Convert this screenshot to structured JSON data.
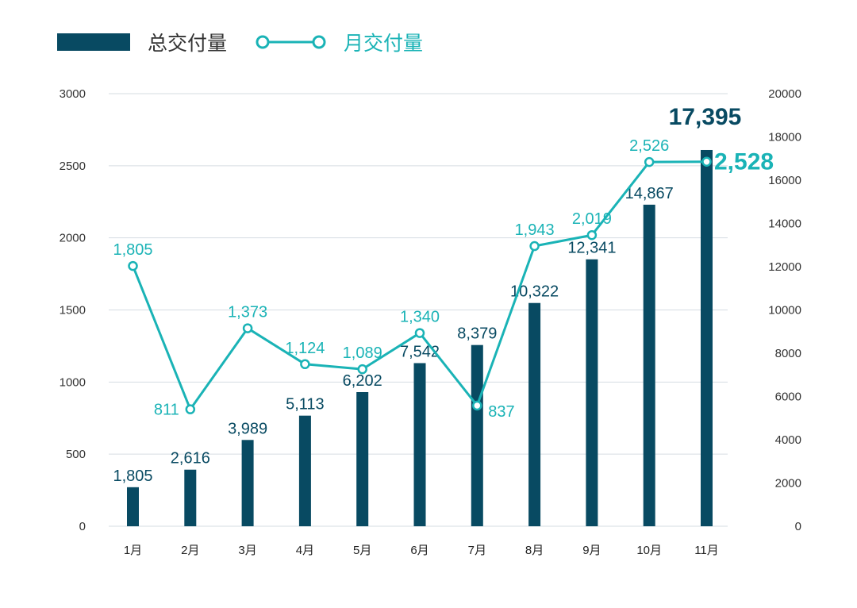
{
  "colors": {
    "bar": "#084a62",
    "line": "#1ab3b6",
    "grid": "#d6dde2",
    "axis_text": "#333333"
  },
  "chart_data": {
    "type": "bar+line",
    "categories": [
      "1月",
      "2月",
      "3月",
      "4月",
      "5月",
      "6月",
      "7月",
      "8月",
      "9月",
      "10月",
      "11月"
    ],
    "series": [
      {
        "name": "总交付量",
        "type": "bar",
        "axis": "right",
        "values": [
          1805,
          2616,
          3989,
          5113,
          6202,
          7542,
          8379,
          10322,
          12341,
          14867,
          17395
        ],
        "labels": [
          "1,805",
          "2,616",
          "3,989",
          "5,113",
          "6,202",
          "7,542",
          "8,379",
          "10,322",
          "12,341",
          "14,867",
          "17,395"
        ]
      },
      {
        "name": "月交付量",
        "type": "line",
        "axis": "left",
        "values": [
          1805,
          811,
          1373,
          1124,
          1089,
          1340,
          837,
          1943,
          2019,
          2526,
          2528
        ],
        "labels": [
          "1,805",
          "811",
          "1,373",
          "1,124",
          "1,089",
          "1,340",
          "837",
          "1,943",
          "2,019",
          "2,526",
          "2,528"
        ]
      }
    ],
    "y_left": {
      "ylim": [
        0,
        3000
      ],
      "ticks": [
        "0",
        "500",
        "1000",
        "1500",
        "2000",
        "2500",
        "3000"
      ]
    },
    "y_right": {
      "ylim": [
        0,
        20000
      ],
      "ticks": [
        "0",
        "2000",
        "4000",
        "6000",
        "8000",
        "10000",
        "12000",
        "14000",
        "16000",
        "18000",
        "20000"
      ]
    },
    "legend": {
      "position": "top-left",
      "entries": [
        "总交付量",
        "月交付量"
      ]
    },
    "grid": true
  }
}
